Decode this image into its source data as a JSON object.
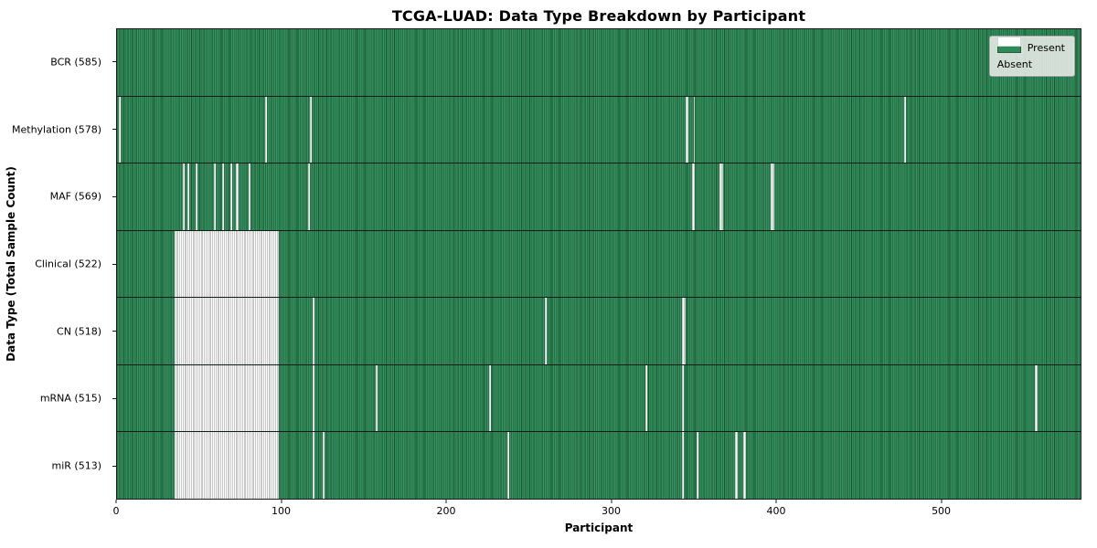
{
  "title": "TCGA-LUAD: Data Type Breakdown by Participant",
  "xlabel": "Participant",
  "ylabel": "Data Type (Total Sample Count)",
  "legend": {
    "present_label": "Present",
    "absent_label": "Absent"
  },
  "colors": {
    "present": "#2e8b57",
    "present_edge": "#1e5c3a",
    "absent": "#ffffff",
    "absent_edge": "#7d7d7d",
    "spine": "#1a1a1a",
    "legend_bg": "#e9ece9",
    "legend_border": "#a8a8a8"
  },
  "chart_data": {
    "type": "heatmap",
    "title": "TCGA-LUAD: Data Type Breakdown by Participant",
    "xlabel": "Participant",
    "ylabel": "Data Type (Total Sample Count)",
    "legend_entries": [
      "Present",
      "Absent"
    ],
    "legend_position": "upper right",
    "grid": false,
    "n_participants": 585,
    "x_ticks": [
      0,
      100,
      200,
      300,
      400,
      500
    ],
    "xlim": [
      0,
      585
    ],
    "rows": [
      {
        "key": "bcr",
        "label": "BCR (585)",
        "data_type": "BCR",
        "present_count": 585,
        "absent_count": 0,
        "absent_ranges": []
      },
      {
        "key": "methylation",
        "label": "Methylation (578)",
        "data_type": "Methylation",
        "present_count": 578,
        "absent_count": 7,
        "absent_ranges": [
          [
            1,
            1
          ],
          [
            90,
            1
          ],
          [
            117,
            1
          ],
          [
            345,
            2
          ],
          [
            350,
            1
          ],
          [
            478,
            1
          ]
        ]
      },
      {
        "key": "maf",
        "label": "MAF (569)",
        "data_type": "MAF",
        "present_count": 569,
        "absent_count": 16,
        "absent_ranges": [
          [
            40,
            1
          ],
          [
            43,
            1
          ],
          [
            48,
            1
          ],
          [
            59,
            1
          ],
          [
            64,
            1
          ],
          [
            69,
            1
          ],
          [
            72,
            2
          ],
          [
            80,
            1
          ],
          [
            116,
            1
          ],
          [
            349,
            2
          ],
          [
            366,
            2
          ],
          [
            397,
            2
          ]
        ]
      },
      {
        "key": "clinical",
        "label": "Clinical (522)",
        "data_type": "Clinical",
        "present_count": 522,
        "absent_count": 63,
        "absent_ranges": [
          [
            35,
            63
          ]
        ]
      },
      {
        "key": "cn",
        "label": "CN (518)",
        "data_type": "CN",
        "present_count": 518,
        "absent_count": 67,
        "absent_ranges": [
          [
            35,
            63
          ],
          [
            119,
            1
          ],
          [
            260,
            1
          ],
          [
            343,
            2
          ]
        ]
      },
      {
        "key": "mrna",
        "label": "mRNA (515)",
        "data_type": "mRNA",
        "present_count": 515,
        "absent_count": 70,
        "absent_ranges": [
          [
            35,
            63
          ],
          [
            119,
            1
          ],
          [
            157,
            1
          ],
          [
            226,
            1
          ],
          [
            321,
            1
          ],
          [
            343,
            1
          ],
          [
            557,
            2
          ]
        ]
      },
      {
        "key": "mir",
        "label": "miR (513)",
        "data_type": "miR",
        "present_count": 513,
        "absent_count": 72,
        "absent_ranges": [
          [
            35,
            63
          ],
          [
            119,
            1
          ],
          [
            125,
            1
          ],
          [
            237,
            1
          ],
          [
            343,
            1
          ],
          [
            352,
            1
          ],
          [
            375,
            2
          ],
          [
            380,
            2
          ]
        ]
      }
    ]
  }
}
